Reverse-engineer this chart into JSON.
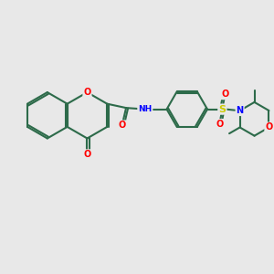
{
  "bg_color": "#e8e8e8",
  "bond_color": "#2d6b4a",
  "bond_width": 1.5,
  "atom_colors": {
    "O": "#ff0000",
    "N": "#0000ff",
    "S": "#cccc00",
    "H": "#888888",
    "C": "#2d6b4a"
  },
  "figsize": [
    3.0,
    3.0
  ],
  "dpi": 100
}
